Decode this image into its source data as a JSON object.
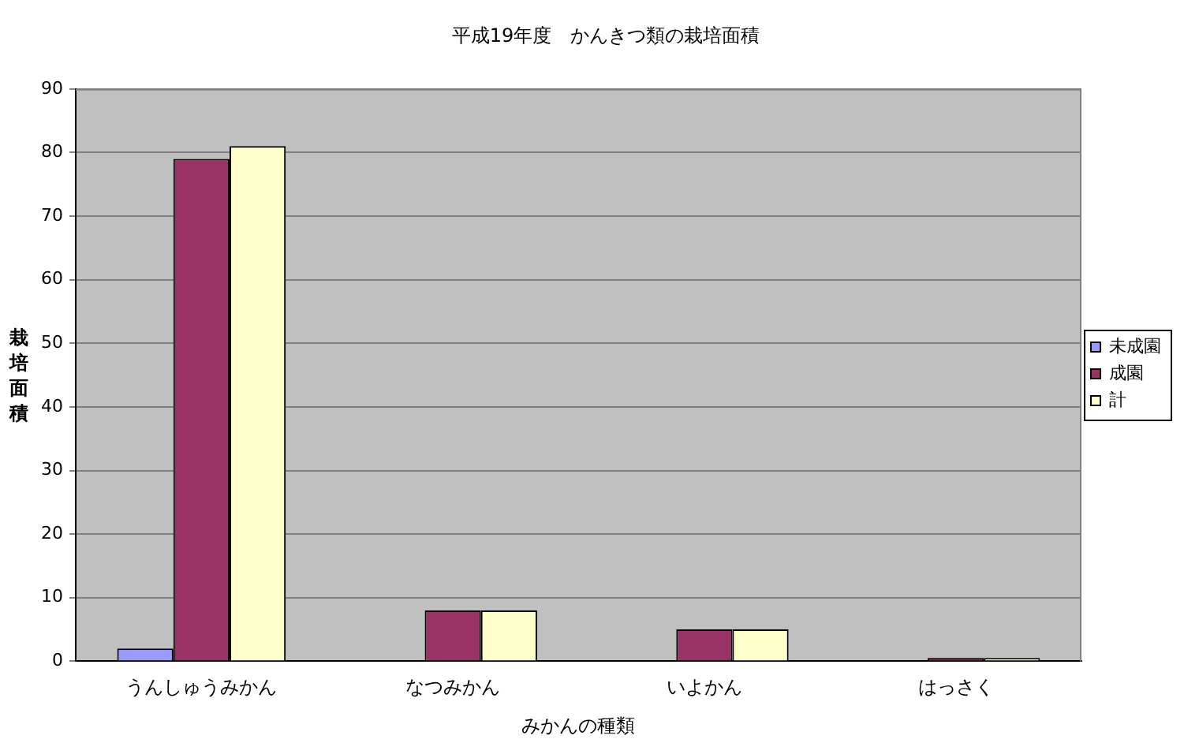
{
  "chart_data": {
    "type": "bar",
    "title": "平成19年度　かんきつ類の栽培面積",
    "xlabel": "みかんの種類",
    "ylabel": "栽培面積",
    "categories": [
      "うんしゅうみかん",
      "なつみかん",
      "いよかん",
      "はっさく"
    ],
    "series": [
      {
        "name": "未成園",
        "color": "#9999ff",
        "values": [
          2,
          null,
          null,
          null
        ]
      },
      {
        "name": "成園",
        "color": "#993366",
        "values": [
          79,
          8,
          5,
          0.5
        ]
      },
      {
        "name": "計",
        "color": "#ffffcc",
        "values": [
          81,
          8,
          5,
          0.5
        ]
      }
    ],
    "ylim": [
      0,
      90
    ],
    "yticks": [
      0,
      10,
      20,
      30,
      40,
      50,
      60,
      70,
      80,
      90
    ],
    "grid": "y",
    "legend": "right"
  }
}
